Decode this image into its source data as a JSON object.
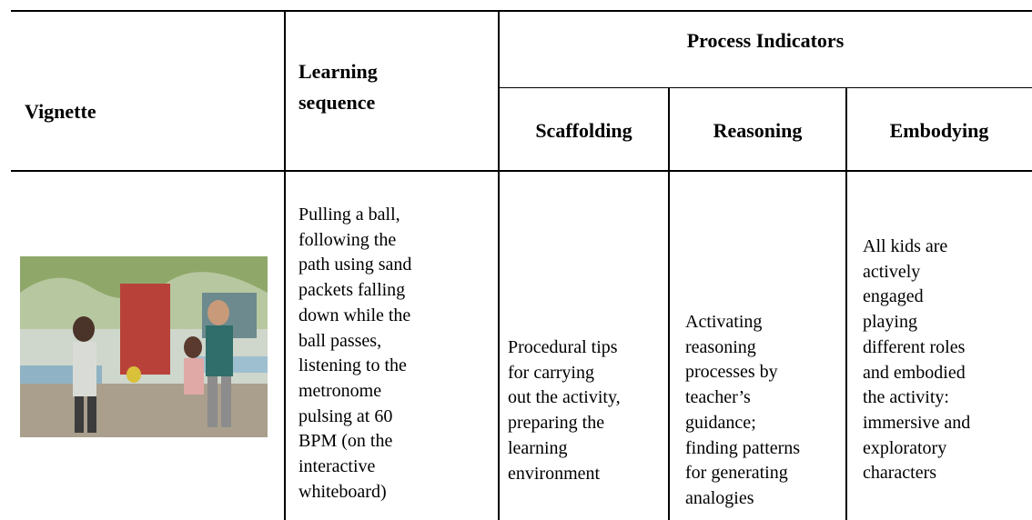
{
  "table": {
    "header": {
      "vignette": "Vignette",
      "learning_sequence": [
        "Learning",
        "sequence"
      ],
      "process_indicators": "Process Indicators",
      "subcolumns": [
        "Scaffolding",
        "Reasoning",
        "Embodying"
      ]
    },
    "rows": [
      {
        "learning_sequence": [
          "Pulling a ball,",
          "following the",
          "path using sand",
          "packets falling",
          "down while the",
          "ball passes,",
          "listening to the",
          "metronome",
          "pulsing at 60",
          "BPM (on the",
          "interactive",
          "whiteboard)"
        ],
        "scaffolding": [
          "Procedural tips",
          "for carrying",
          "out the activity,",
          "preparing the",
          "learning",
          "environment"
        ],
        "reasoning": [
          "Activating",
          "reasoning",
          "processes by",
          "teacher’s",
          "guidance;",
          "finding patterns",
          "for generating",
          "analogies"
        ],
        "embodying": [
          "All kids are",
          "actively",
          "engaged",
          "playing",
          "different roles",
          "and embodied",
          "the activity:",
          "immersive and",
          "exploratory",
          "characters"
        ]
      }
    ]
  }
}
